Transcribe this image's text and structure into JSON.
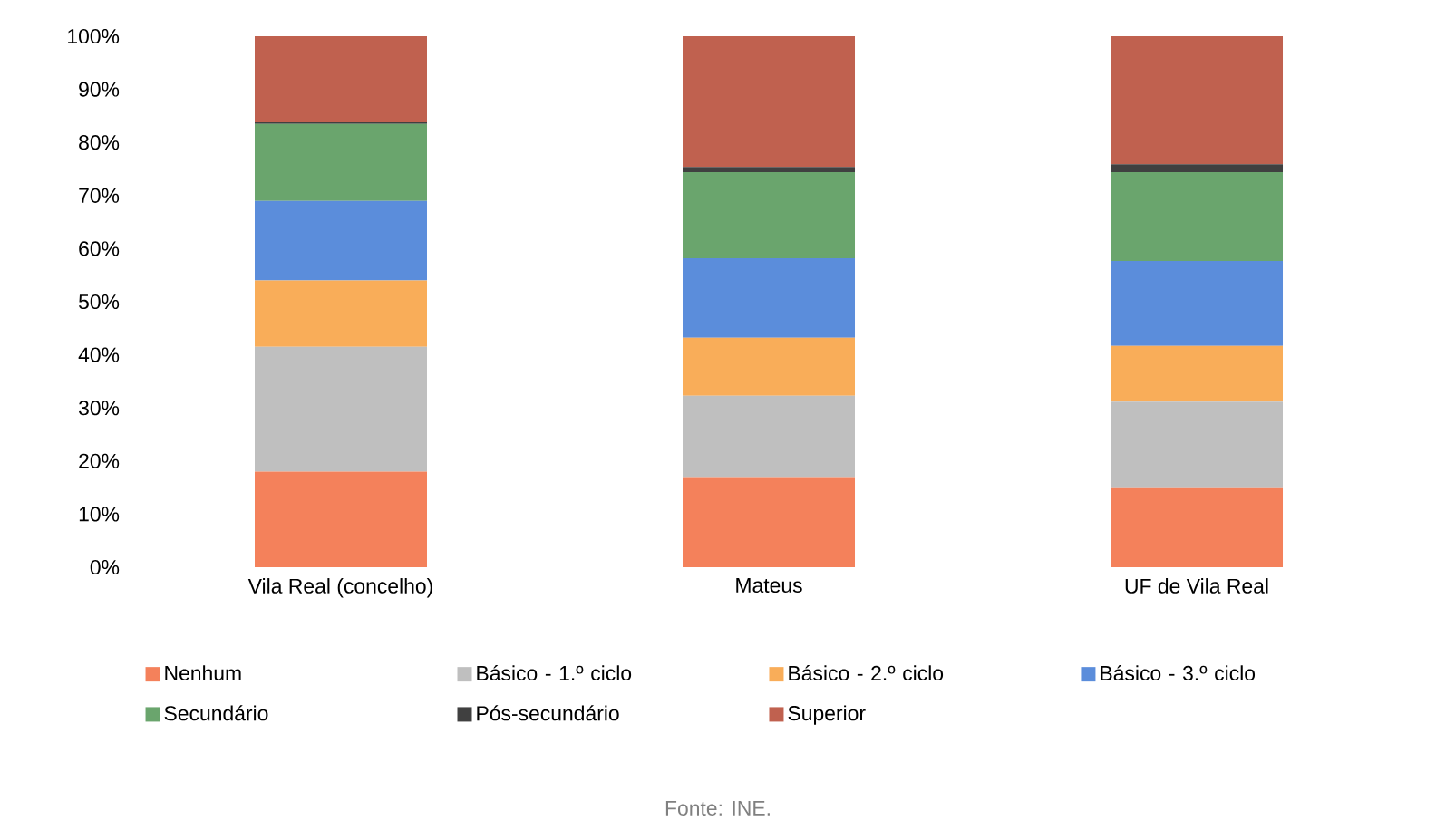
{
  "chart_data": {
    "type": "bar",
    "stacked": true,
    "categories": [
      "Vila Real (concelho)",
      "Mateus",
      "UF de Vila Real"
    ],
    "series": [
      {
        "name": "Nenhum",
        "color": "#f4815b",
        "values": [
          18,
          17,
          14.9
        ]
      },
      {
        "name": "Básico - 1.º ciclo",
        "color": "#bfbfbf",
        "values": [
          23.5,
          15.3,
          16.3
        ]
      },
      {
        "name": "Básico - 2.º ciclo",
        "color": "#f9ad59",
        "values": [
          12.5,
          10.9,
          10.5
        ]
      },
      {
        "name": "Básico - 3.º ciclo",
        "color": "#5b8ddb",
        "values": [
          15,
          15,
          16
        ]
      },
      {
        "name": "Secundário",
        "color": "#6aa56d",
        "values": [
          14.5,
          16.2,
          16.7
        ]
      },
      {
        "name": "Pós-secundário",
        "color": "#404040",
        "values": [
          0.3,
          1,
          1.5
        ]
      },
      {
        "name": "Superior",
        "color": "#c0614f",
        "values": [
          16.2,
          24.6,
          24.1
        ]
      }
    ],
    "ylim": [
      0,
      100
    ],
    "yticks": [
      {
        "value": 0,
        "label": "0%"
      },
      {
        "value": 10,
        "label": "10%"
      },
      {
        "value": 20,
        "label": "20%"
      },
      {
        "value": 30,
        "label": "30%"
      },
      {
        "value": 40,
        "label": "40%"
      },
      {
        "value": 50,
        "label": "50%"
      },
      {
        "value": 60,
        "label": "60%"
      },
      {
        "value": 70,
        "label": "70%"
      },
      {
        "value": 80,
        "label": "80%"
      },
      {
        "value": 90,
        "label": "90%"
      },
      {
        "value": 100,
        "label": "100%"
      }
    ],
    "legend": "bottom",
    "annotations": [
      "Fonte: INE."
    ]
  }
}
